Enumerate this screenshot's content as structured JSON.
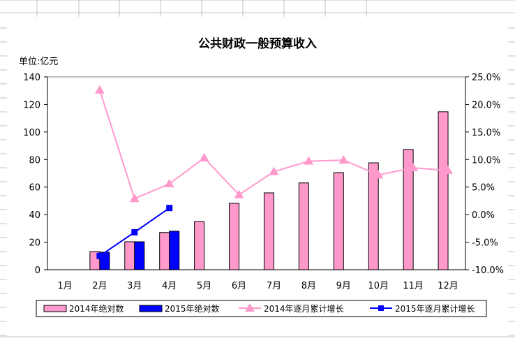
{
  "chart_data": {
    "type": "bar+line",
    "title": "公共财政一般预算收入",
    "unit_label": "单位:亿元",
    "categories": [
      "1月",
      "2月",
      "3月",
      "4月",
      "5月",
      "6月",
      "7月",
      "8月",
      "9月",
      "10月",
      "11月",
      "12月"
    ],
    "y_left": {
      "ylim": [
        0,
        140
      ],
      "ticks": [
        "0",
        "20",
        "40",
        "60",
        "80",
        "100",
        "120",
        "140"
      ],
      "tick_values": [
        0,
        20,
        40,
        60,
        80,
        100,
        120,
        140
      ]
    },
    "y_right": {
      "ylim": [
        -10,
        25
      ],
      "ticks": [
        "-10.0%",
        "-5.0%",
        "0.0%",
        "5.0%",
        "10.0%",
        "15.0%",
        "20.0%",
        "25.0%"
      ],
      "tick_values": [
        -10,
        -5,
        0,
        5,
        10,
        15,
        20,
        25
      ]
    },
    "series": [
      {
        "name": "2014年绝对数",
        "kind": "bar",
        "axis": "left",
        "color": "#ff99cc",
        "values": [
          null,
          13.2,
          20.3,
          27,
          35,
          48.2,
          55.8,
          63,
          70.5,
          77.6,
          87.3,
          114.7
        ]
      },
      {
        "name": "2015年绝对数",
        "kind": "bar",
        "axis": "left",
        "color": "#0000ff",
        "values": [
          null,
          12.7,
          20.3,
          28,
          null,
          null,
          null,
          null,
          null,
          null,
          null,
          null
        ]
      },
      {
        "name": "2014年逐月累计增长",
        "kind": "line",
        "marker": "triangle",
        "axis": "right",
        "color": "#ff99cc",
        "values": [
          null,
          22.6,
          2.9,
          5.6,
          10.3,
          3.6,
          7.8,
          9.7,
          9.9,
          7.2,
          8.5,
          8.0
        ]
      },
      {
        "name": "2015年逐月累计增长",
        "kind": "line",
        "marker": "square",
        "axis": "right",
        "color": "#0000ff",
        "values": [
          null,
          -7.5,
          -3.2,
          1.2,
          null,
          null,
          null,
          null,
          null,
          null,
          null,
          null
        ]
      }
    ],
    "legend_position": "bottom",
    "grid": false
  }
}
